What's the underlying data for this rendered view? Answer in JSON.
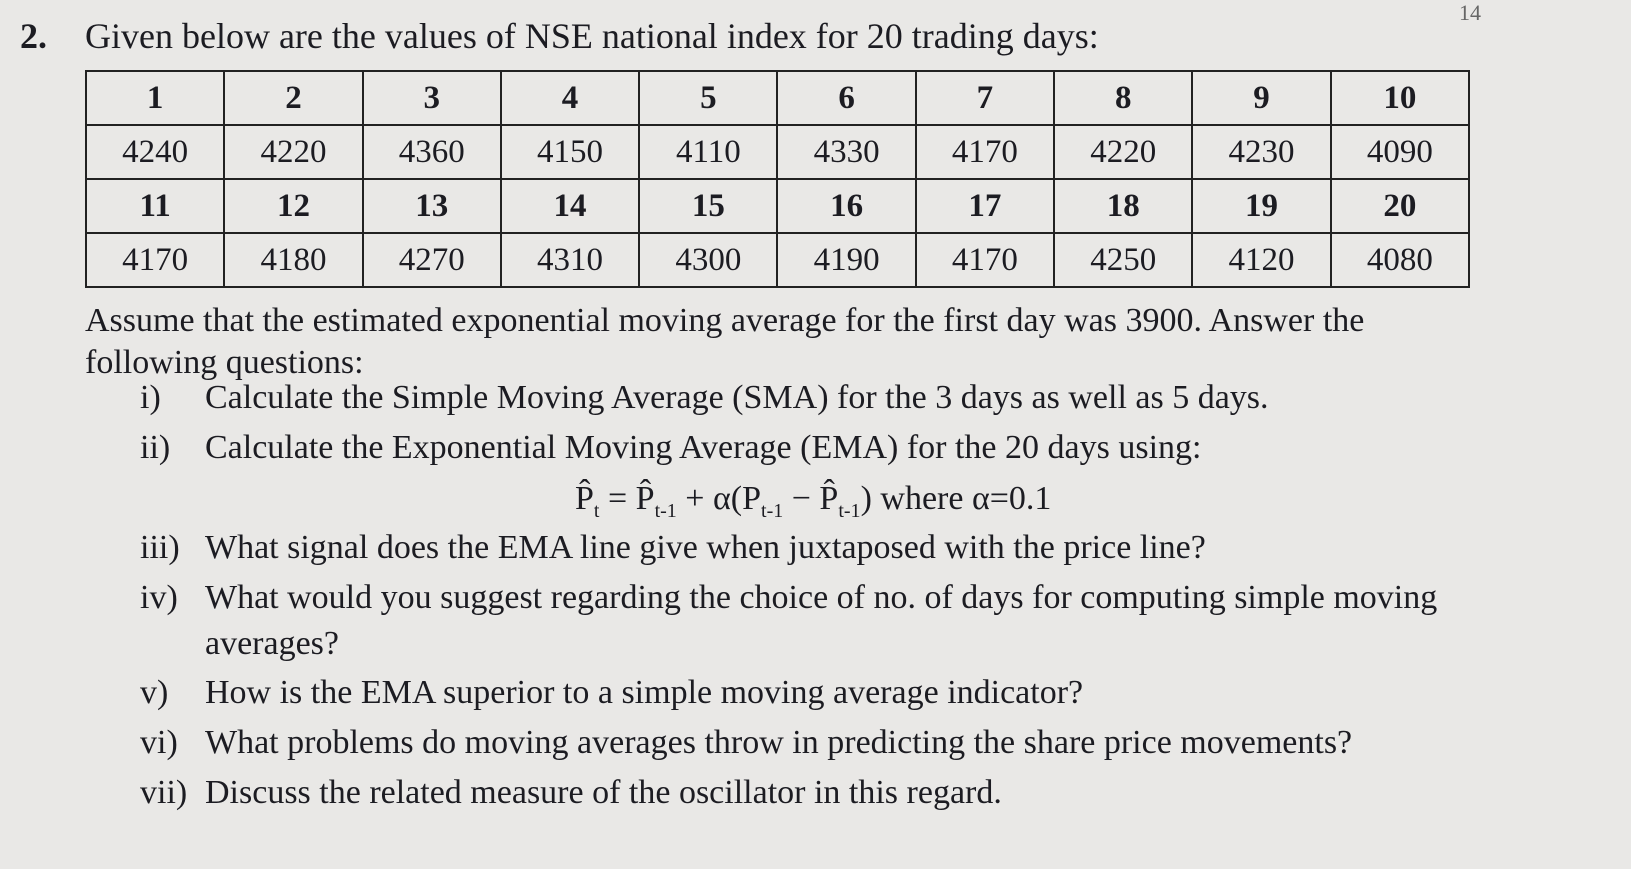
{
  "page_number": "14",
  "question": {
    "number": "2.",
    "intro": "Given below are the values of NSE national index for 20 trading days:"
  },
  "table": {
    "rows": [
      [
        1,
        2,
        3,
        4,
        5,
        6,
        7,
        8,
        9,
        10
      ],
      [
        4240,
        4220,
        4360,
        4150,
        4110,
        4330,
        4170,
        4220,
        4230,
        4090
      ],
      [
        11,
        12,
        13,
        14,
        15,
        16,
        17,
        18,
        19,
        20
      ],
      [
        4170,
        4180,
        4270,
        4310,
        4300,
        4190,
        4170,
        4250,
        4120,
        4080
      ]
    ]
  },
  "assumption": "Assume that the estimated exponential moving average for the first day was 3900. Answer the following questions:",
  "items": [
    {
      "label": "i)",
      "text": "Calculate the Simple Moving Average (SMA) for the 3 days as well as 5 days."
    },
    {
      "label": "ii)",
      "text": "Calculate the Exponential Moving Average (EMA) for the 20 days using:"
    },
    {
      "label": "iii)",
      "text": "What signal does the EMA line give when juxtaposed with the price line?"
    },
    {
      "label": "iv)",
      "text": "What would you suggest regarding the choice of no. of days for computing simple moving averages?"
    },
    {
      "label": "v)",
      "text": "How is the EMA superior to a simple moving average indicator?"
    },
    {
      "label": "vi)",
      "text": "What problems do moving averages throw in predicting the share price movements?"
    },
    {
      "label": "vii)",
      "text": "Discuss the related measure of the oscillator in this regard."
    }
  ],
  "formula": [
    {
      "text": "P̂",
      "sub": "t"
    },
    {
      "text": " = P̂",
      "sub": "t-1"
    },
    {
      "text": " + α(P",
      "sub": "t-1"
    },
    {
      "text": " − P̂",
      "sub": "t-1"
    },
    {
      "text": ") where α=0.1"
    }
  ]
}
